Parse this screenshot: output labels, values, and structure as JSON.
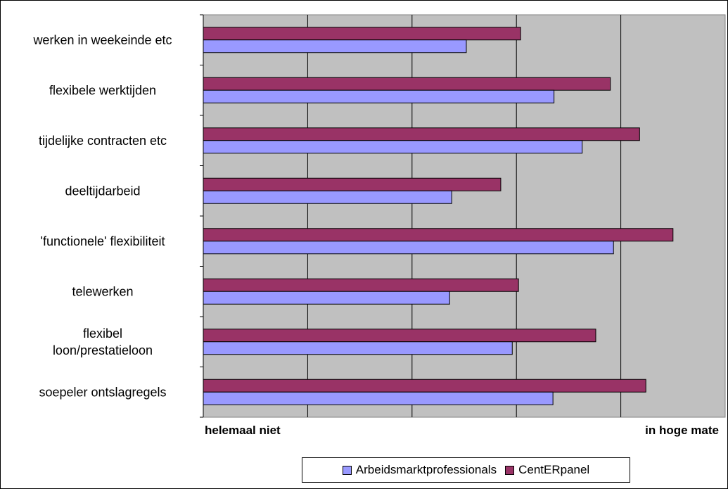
{
  "chart_data": {
    "type": "bar",
    "orientation": "horizontal",
    "categories": [
      "werken in weekeinde etc",
      "flexibele werktijden",
      "tijdelijke contracten etc",
      "deeltijdarbeid",
      "'functionele' flexibiliteit",
      "telewerken",
      "flexibel loon/prestatieloon",
      "soepeler ontslagregels"
    ],
    "series": [
      {
        "name": "CentERpanel",
        "color": "#993366",
        "values": [
          3.04,
          3.9,
          4.18,
          2.85,
          4.5,
          3.02,
          3.76,
          4.24
        ]
      },
      {
        "name": "Arbeidsmarktprofessionals",
        "color": "#9999ff",
        "values": [
          2.52,
          3.36,
          3.63,
          2.38,
          3.93,
          2.36,
          2.96,
          3.35
        ]
      }
    ],
    "xlim": [
      0,
      5
    ],
    "x_tick_left": "helemaal niet",
    "x_tick_right": "in hoge mate",
    "grid": true,
    "plot_background": "#c0c0c0",
    "legend_position": "bottom"
  }
}
